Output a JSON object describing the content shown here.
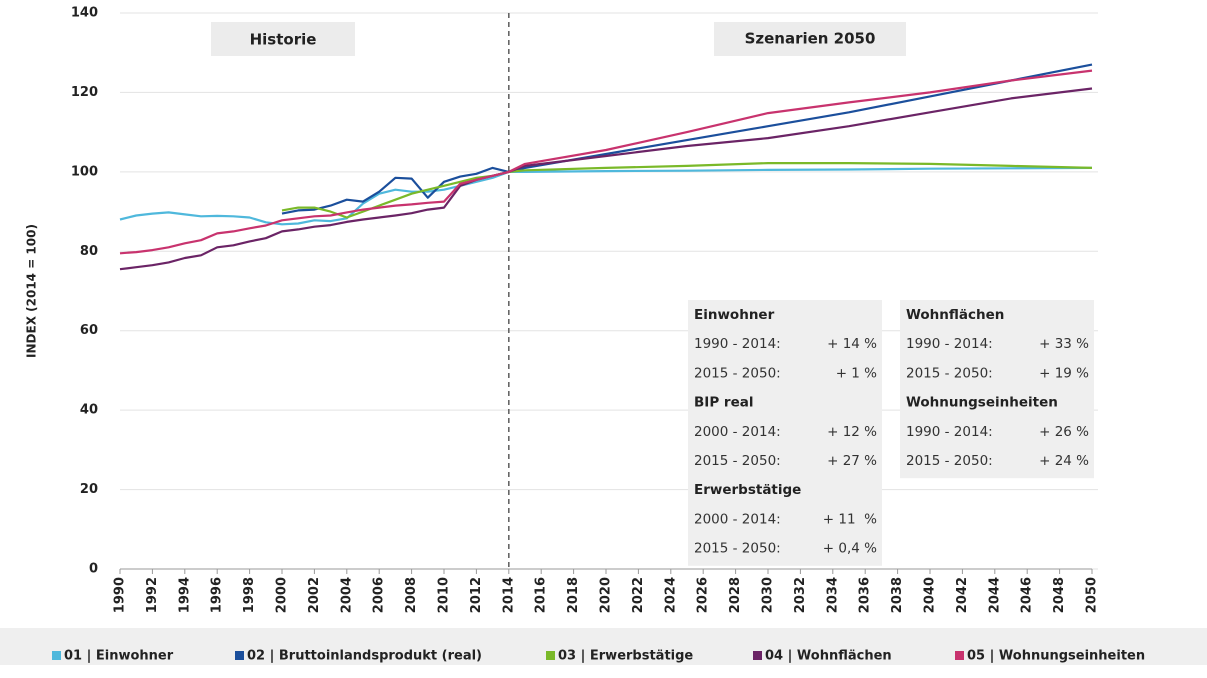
{
  "chart_data": {
    "type": "line",
    "y_label": "INDEX (2014 = 100)",
    "annotations": [
      "Historie",
      "Szenarien 2050"
    ],
    "divider_x": 2014,
    "x": [
      1990,
      1991,
      1992,
      1993,
      1994,
      1995,
      1996,
      1997,
      1998,
      1999,
      2000,
      2001,
      2002,
      2003,
      2004,
      2005,
      2006,
      2007,
      2008,
      2009,
      2010,
      2011,
      2012,
      2013,
      2014,
      2015,
      2020,
      2025,
      2030,
      2035,
      2040,
      2045,
      2050
    ],
    "xlim": [
      1990,
      2050
    ],
    "xticks": [
      1990,
      1992,
      1994,
      1996,
      1998,
      2000,
      2002,
      2004,
      2006,
      2008,
      2010,
      2012,
      2014,
      2016,
      2018,
      2020,
      2022,
      2024,
      2026,
      2028,
      2030,
      2032,
      2034,
      2036,
      2038,
      2040,
      2042,
      2044,
      2046,
      2048,
      2050
    ],
    "ylim": [
      0,
      140
    ],
    "yticks": [
      0,
      20,
      40,
      60,
      80,
      100,
      120,
      140
    ],
    "grid": true,
    "series": [
      {
        "name": "01 | Einwohner",
        "color": "#4fb8dc",
        "values": [
          88,
          89,
          89.5,
          89.8,
          89.3,
          88.8,
          88.9,
          88.8,
          88.5,
          87.3,
          86.8,
          87,
          87.8,
          87.6,
          88.3,
          92,
          94.5,
          95.5,
          95,
          95,
          95.5,
          96.5,
          97.5,
          98.5,
          100,
          100,
          100.2,
          100.3,
          100.5,
          100.6,
          100.8,
          100.9,
          101
        ]
      },
      {
        "name": "02 | Bruttoinlandsprodukt (real)",
        "color": "#1b4f9c",
        "values": [
          null,
          null,
          null,
          null,
          null,
          null,
          null,
          null,
          null,
          null,
          89.5,
          90.3,
          90.5,
          91.5,
          93,
          92.5,
          95,
          98.5,
          98.3,
          93.5,
          97.5,
          98.8,
          99.5,
          101,
          100,
          101,
          104.5,
          108,
          111.5,
          115,
          119,
          123,
          127
        ]
      },
      {
        "name": "03 | Erwerbstätige",
        "color": "#7ab929",
        "values": [
          null,
          null,
          null,
          null,
          null,
          null,
          null,
          null,
          null,
          null,
          90.3,
          91,
          91,
          90,
          88.5,
          90,
          91.5,
          93,
          94.5,
          95.5,
          96.5,
          97.5,
          98.5,
          99,
          100,
          100.4,
          101,
          101.5,
          102.2,
          102.2,
          102,
          101.5,
          101
        ]
      },
      {
        "name": "04 | Wohnflächen",
        "color": "#6b2466",
        "values": [
          75.5,
          76,
          76.5,
          77.2,
          78.3,
          79,
          81,
          81.5,
          82.5,
          83.3,
          85,
          85.5,
          86.2,
          86.6,
          87.4,
          88,
          88.5,
          89,
          89.6,
          90.5,
          91,
          96.5,
          98,
          99,
          100,
          101.5,
          104,
          106.5,
          108.5,
          111.5,
          115,
          118.5,
          121
        ]
      },
      {
        "name": "05 | Wohnungseinheiten",
        "color": "#c8336e",
        "values": [
          79.5,
          79.8,
          80.3,
          81,
          82,
          82.8,
          84.5,
          85,
          85.8,
          86.5,
          87.8,
          88.3,
          88.8,
          89,
          89.8,
          90.5,
          91,
          91.5,
          91.8,
          92.2,
          92.5,
          97,
          98,
          99,
          100,
          102,
          105.5,
          110,
          114.8,
          117.5,
          120,
          123,
          125.5
        ]
      }
    ],
    "stat_boxes": [
      [
        {
          "title": "Einwohner",
          "color": "#4fb8dc",
          "rows": [
            [
              "1990 - 2014:",
              "+ 14 %"
            ],
            [
              "2015 - 2050:",
              "+ 1 %"
            ]
          ]
        },
        {
          "title": "BIP real",
          "color": "#1b4f9c",
          "rows": [
            [
              "2000 - 2014:",
              "+ 12 %"
            ],
            [
              "2015 - 2050:",
              "+ 27 %"
            ]
          ]
        },
        {
          "title": "Erwerbstätige",
          "color": "#7ab929",
          "rows": [
            [
              "2000 - 2014:",
              "+ 11  %"
            ],
            [
              "2015 - 2050:",
              "+ 0,4 %"
            ]
          ]
        }
      ],
      [
        {
          "title": "Wohnflächen",
          "color": "#a0449a",
          "rows": [
            [
              "1990 - 2014:",
              "+ 33 %"
            ],
            [
              "2015 - 2050:",
              "+ 19 %"
            ]
          ]
        },
        {
          "title": "Wohnungseinheiten",
          "color": "#c8336e",
          "rows": [
            [
              "1990 - 2014:",
              "+ 26 %"
            ],
            [
              "2015 - 2050:",
              "+ 24 %"
            ]
          ]
        }
      ]
    ]
  }
}
